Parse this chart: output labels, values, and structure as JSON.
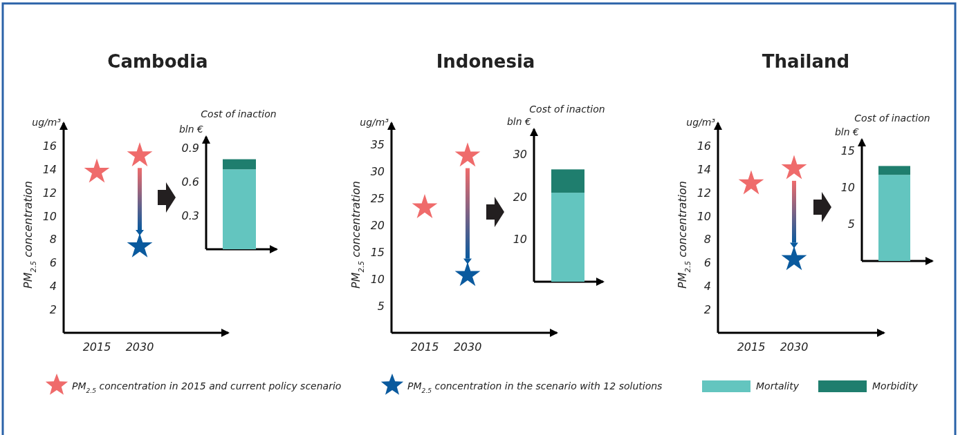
{
  "chart_data": [
    {
      "type": "scatter",
      "title": "Cambodia",
      "ylabel": "PM$_{2.5}$ concentration",
      "annotations": [
        "ug/m³"
      ],
      "categories": [
        "2015",
        "2030"
      ],
      "ylim": [
        0,
        18
      ],
      "yticks": [
        2,
        4,
        6,
        8,
        10,
        12,
        14,
        16
      ],
      "marker": "star",
      "legend": "bottom",
      "grid": false,
      "series": [
        {
          "name": "PM$_{2.5}$ concentration in 2015 and current policy scenario",
          "color": "#ef6b6b",
          "values": [
            13.8,
            15.2
          ]
        },
        {
          "name": "PM$_{2.5}$ concentration in the scenario with 12 solutions",
          "color": "#0a5a9e",
          "values": [
            null,
            7.4
          ]
        }
      ]
    },
    {
      "type": "bar",
      "stacked": true,
      "title": "Cost of inaction",
      "ylabel": "bln €",
      "categories": [
        null
      ],
      "ylim": [
        0,
        1
      ],
      "yticks": [
        0.3,
        0.6,
        0.9
      ],
      "legend": "bottom",
      "grid": false,
      "series": [
        {
          "name": "Mortality",
          "color": "#63c5bf",
          "values": [
            0.71
          ]
        },
        {
          "name": "Morbidity",
          "color": "#1f7e6e",
          "values": [
            0.09
          ]
        }
      ]
    },
    {
      "type": "scatter",
      "title": "Indonesia",
      "ylabel": "PM$_{2.5}$ concentration",
      "annotations": [
        "ug/m³"
      ],
      "categories": [
        "2015",
        "2030"
      ],
      "ylim": [
        0,
        39
      ],
      "yticks": [
        5,
        10,
        15,
        20,
        25,
        30,
        35
      ],
      "marker": "star",
      "grid": false,
      "series": [
        {
          "color": "#ef6b6b",
          "values": [
            23.3,
            32.9
          ]
        },
        {
          "color": "#0a5a9e",
          "values": [
            null,
            10.7
          ]
        }
      ]
    },
    {
      "type": "bar",
      "stacked": true,
      "title": "Cost of inaction",
      "ylabel": "bln €",
      "categories": [
        null
      ],
      "ylim": [
        0,
        36
      ],
      "yticks": [
        10,
        20,
        30
      ],
      "grid": false,
      "series": [
        {
          "color": "#63c5bf",
          "values": [
            21
          ]
        },
        {
          "color": "#1f7e6e",
          "values": [
            5.5
          ]
        }
      ]
    },
    {
      "type": "scatter",
      "title": "Thailand",
      "ylabel": "PM$_{2.5}$ concentration",
      "annotations": [
        "ug/m³"
      ],
      "categories": [
        "2015",
        "2030"
      ],
      "ylim": [
        0,
        18
      ],
      "yticks": [
        2,
        4,
        6,
        8,
        10,
        12,
        14,
        16
      ],
      "marker": "star",
      "grid": false,
      "series": [
        {
          "color": "#ef6b6b",
          "values": [
            12.8,
            14.1
          ]
        },
        {
          "color": "#0a5a9e",
          "values": [
            null,
            6.3
          ]
        }
      ]
    },
    {
      "type": "bar",
      "stacked": true,
      "title": "Cost of inaction",
      "ylabel": "bln €",
      "categories": [
        null
      ],
      "ylim": [
        0,
        16.5
      ],
      "yticks": [
        5,
        10,
        15
      ],
      "grid": false,
      "series": [
        {
          "color": "#63c5bf",
          "values": [
            11.7
          ]
        },
        {
          "color": "#1f7e6e",
          "values": [
            1.2
          ]
        }
      ]
    }
  ]
}
